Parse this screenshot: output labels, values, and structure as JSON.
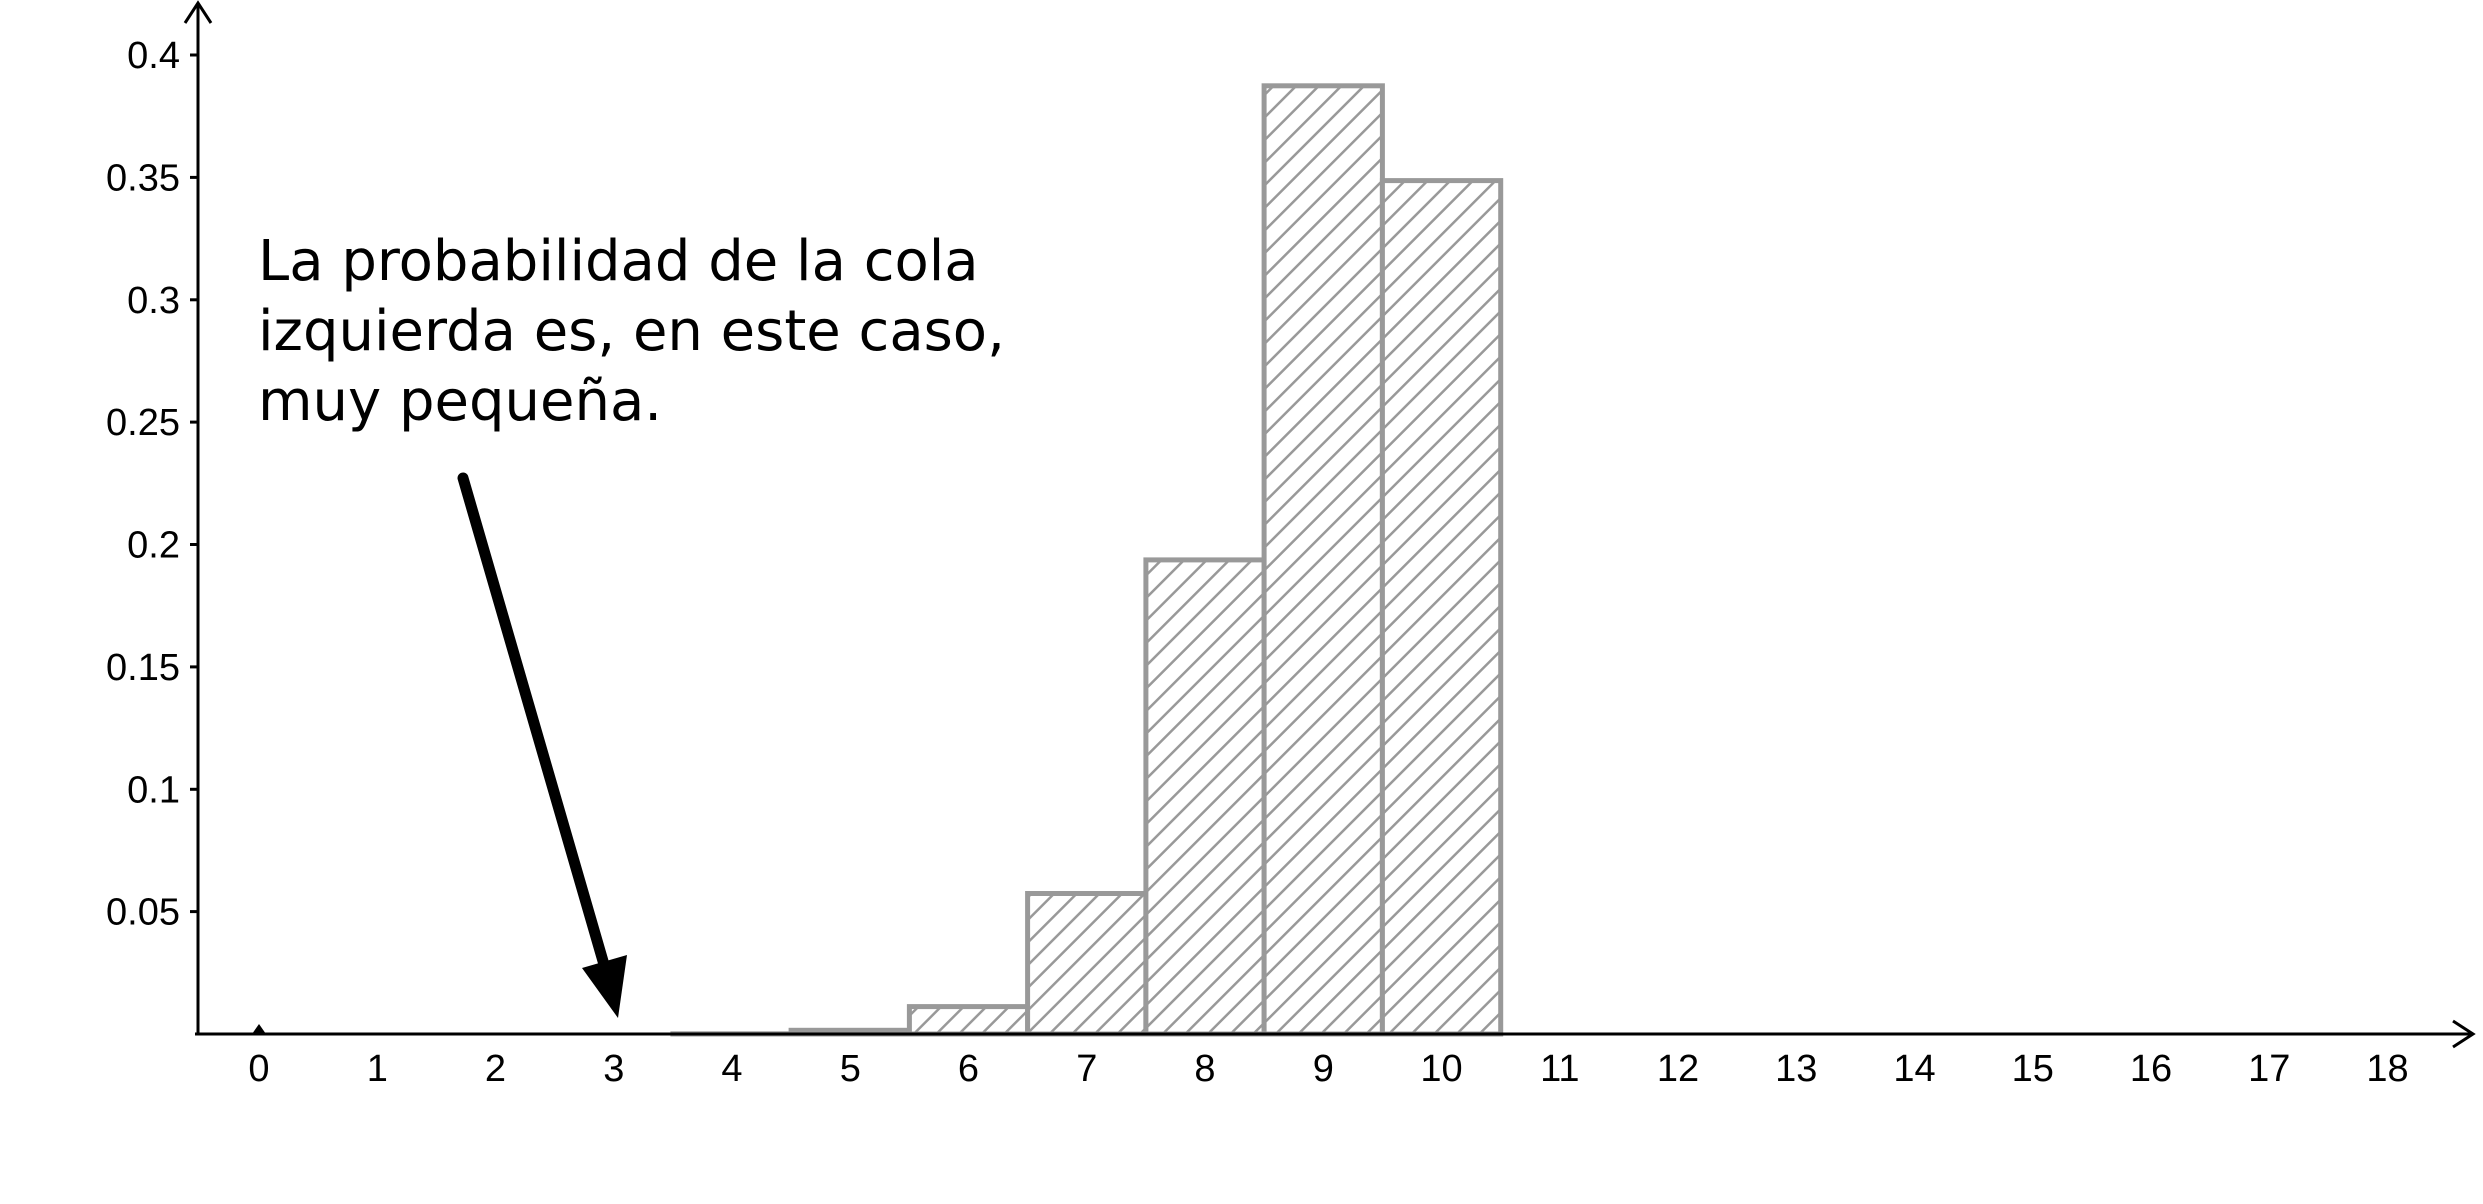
{
  "chart_data": {
    "type": "bar",
    "x_ticks": [
      "0",
      "1",
      "2",
      "3",
      "4",
      "5",
      "6",
      "7",
      "8",
      "9",
      "10",
      "11",
      "12",
      "13",
      "14",
      "15",
      "16",
      "17",
      "18"
    ],
    "y_ticks": [
      "0.05",
      "0.1",
      "0.15",
      "0.2",
      "0.25",
      "0.3",
      "0.35",
      "0.4"
    ],
    "y_tick_values": [
      0.05,
      0.1,
      0.15,
      0.2,
      0.25,
      0.3,
      0.35,
      0.4
    ],
    "xlim": [
      -0.5,
      18.7
    ],
    "ylim": [
      0,
      0.42
    ],
    "bars": [
      {
        "x": 0,
        "value": 0.0
      },
      {
        "x": 1,
        "value": 0.0
      },
      {
        "x": 2,
        "value": 0.0
      },
      {
        "x": 3,
        "value": 0.0
      },
      {
        "x": 4,
        "value": 0.0001
      },
      {
        "x": 5,
        "value": 0.0015
      },
      {
        "x": 6,
        "value": 0.0112
      },
      {
        "x": 7,
        "value": 0.0574
      },
      {
        "x": 8,
        "value": 0.1937
      },
      {
        "x": 9,
        "value": 0.3874
      },
      {
        "x": 10,
        "value": 0.3487
      }
    ],
    "bar_color": "#999999",
    "annotation": {
      "lines": [
        "La probabilidad de la cola",
        "izquierda es, en este caso,",
        "muy pequeña."
      ],
      "arrow_target_x": 3
    },
    "grid": false,
    "legend": "none"
  }
}
